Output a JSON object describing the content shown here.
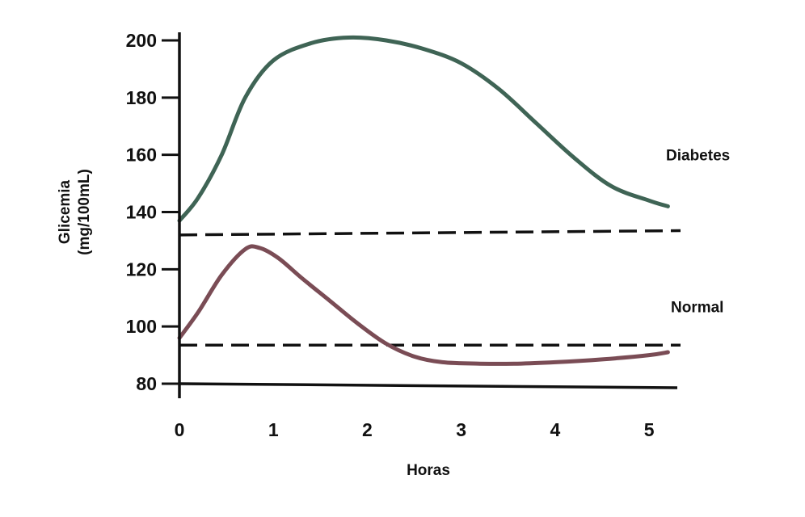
{
  "chart_data": {
    "type": "line",
    "title": "",
    "xlabel": "Horas",
    "ylabel_line1": "Glicemia",
    "ylabel_line2": "(mg/100mL)",
    "xlim": [
      0,
      5.3
    ],
    "ylim": [
      80,
      200
    ],
    "x_ticks": [
      0,
      1,
      2,
      3,
      4,
      5
    ],
    "y_ticks": [
      80,
      100,
      120,
      140,
      160,
      180,
      200
    ],
    "grid": false,
    "series": [
      {
        "name": "Diabetes",
        "color": "#3f6455",
        "points": [
          [
            0,
            137
          ],
          [
            0.2,
            145
          ],
          [
            0.45,
            160
          ],
          [
            0.7,
            180
          ],
          [
            1.0,
            193
          ],
          [
            1.4,
            199
          ],
          [
            1.8,
            201
          ],
          [
            2.2,
            200
          ],
          [
            2.6,
            197
          ],
          [
            3.0,
            192
          ],
          [
            3.4,
            183
          ],
          [
            3.8,
            171
          ],
          [
            4.2,
            159
          ],
          [
            4.6,
            149
          ],
          [
            5.0,
            144
          ],
          [
            5.2,
            142
          ]
        ]
      },
      {
        "name": "Normal",
        "color": "#7a4c55",
        "points": [
          [
            0,
            96
          ],
          [
            0.2,
            105
          ],
          [
            0.45,
            118
          ],
          [
            0.7,
            127
          ],
          [
            0.85,
            127.5
          ],
          [
            1.05,
            124
          ],
          [
            1.3,
            117
          ],
          [
            1.6,
            109
          ],
          [
            1.9,
            101
          ],
          [
            2.2,
            94
          ],
          [
            2.5,
            89.5
          ],
          [
            2.8,
            87.5
          ],
          [
            3.2,
            87
          ],
          [
            3.6,
            87
          ],
          [
            4.0,
            87.5
          ],
          [
            4.5,
            88.5
          ],
          [
            5.0,
            90
          ],
          [
            5.2,
            91
          ]
        ]
      }
    ],
    "reference_lines": [
      {
        "y1": 132,
        "y2": 133.5,
        "style": "dashed"
      },
      {
        "y1": 93.5,
        "y2": 93.5,
        "style": "dashed"
      }
    ],
    "axis_color": "#111111",
    "dash_color": "#111111"
  }
}
